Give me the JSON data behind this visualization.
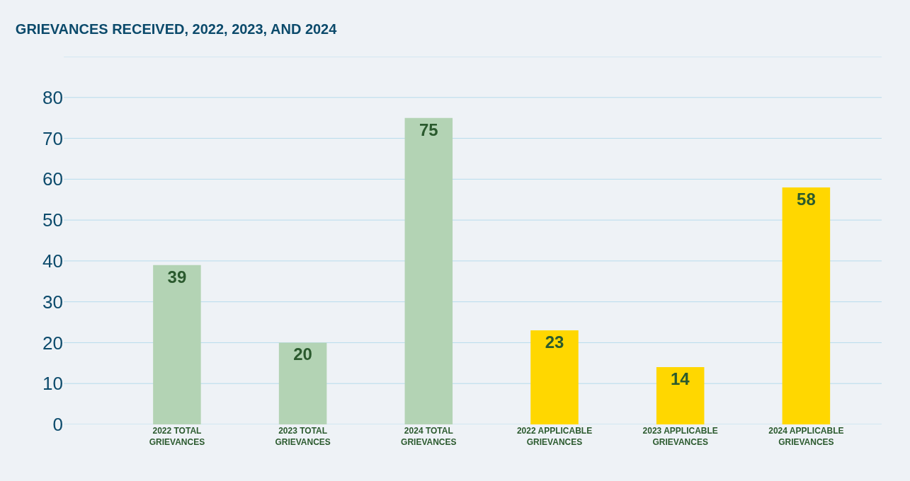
{
  "chart_data": {
    "type": "bar",
    "title": "GRIEVANCES RECEIVED, 2022, 2023, AND 2024",
    "categories": [
      "2022 TOTAL GRIEVANCES",
      "2023 TOTAL GRIEVANCES",
      "2024 TOTAL GRIEVANCES",
      "2022 APPLICABLE GRIEVANCES",
      "2023 APPLICABLE GRIEVANCES",
      "2024 APPLICABLE GRIEVANCES"
    ],
    "values": [
      39,
      20,
      75,
      23,
      14,
      58
    ],
    "colors": [
      "#b3d3b4",
      "#b3d3b4",
      "#b3d3b4",
      "#ffd700",
      "#ffd700",
      "#ffd700"
    ],
    "ylim": [
      0,
      90
    ],
    "yticks": [
      0,
      10,
      20,
      30,
      40,
      50,
      60,
      70,
      80,
      {
        "value": 90,
        "label": null
      }
    ],
    "grid": "y",
    "data_labels": true
  }
}
